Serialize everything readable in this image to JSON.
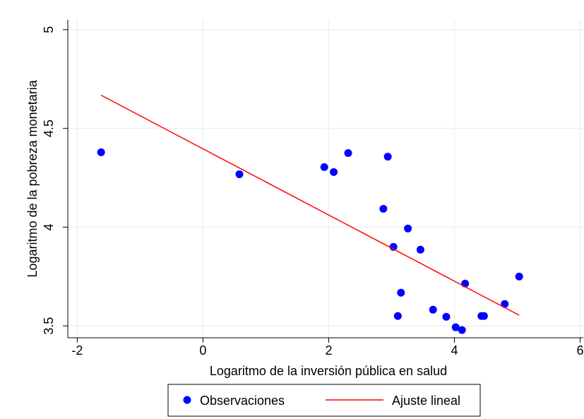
{
  "chart_data": {
    "type": "scatter",
    "xlabel": "Logaritmo de la inversión pública en salud",
    "ylabel": "Logaritmo de la pobreza monetaria",
    "xlim": [
      -2.15,
      6.05
    ],
    "ylim": [
      3.44,
      5.05
    ],
    "xticks": [
      -2,
      0,
      2,
      4,
      6
    ],
    "yticks": [
      3.5,
      4,
      4.5,
      5
    ],
    "grid": true,
    "legend": "bottom",
    "series": [
      {
        "name": "Observaciones",
        "type": "scatter",
        "color": "#0000ff",
        "x": [
          -1.62,
          0.58,
          1.93,
          2.08,
          2.31,
          2.94,
          2.87,
          3.26,
          3.03,
          3.46,
          3.15,
          3.1,
          3.66,
          3.87,
          4.02,
          4.12,
          4.17,
          4.43,
          4.47,
          4.8,
          5.03
        ],
        "values": [
          4.379,
          4.268,
          4.304,
          4.279,
          4.375,
          4.357,
          4.093,
          3.993,
          3.9,
          3.886,
          3.668,
          3.55,
          3.582,
          3.546,
          3.493,
          3.479,
          3.714,
          3.55,
          3.55,
          3.611,
          3.75
        ]
      },
      {
        "name": "Ajuste lineal",
        "type": "line",
        "color": "#ff0000",
        "x": [
          -1.62,
          5.03
        ],
        "values": [
          4.668,
          3.554
        ]
      }
    ]
  }
}
